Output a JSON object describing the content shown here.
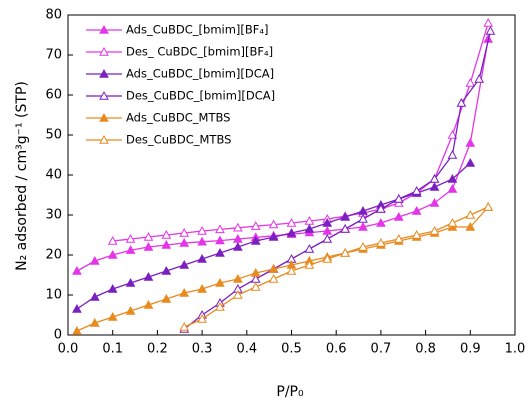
{
  "chart_data": {
    "type": "line",
    "xlabel": "P/P₀",
    "ylabel": "N₂ adsorbed / cm³g⁻¹ (STP)",
    "xlim": [
      0,
      1
    ],
    "ylim": [
      0,
      80
    ],
    "xticks": [
      {
        "value": 0,
        "label": "0.0"
      },
      0.1,
      0.2,
      0.3,
      0.4,
      0.5,
      0.6,
      0.7,
      0.8,
      0.9,
      {
        "value": 1,
        "label": "1.0"
      }
    ],
    "yticks": [
      0,
      10,
      20,
      30,
      40,
      50,
      60,
      70,
      80
    ],
    "legend": "upper left",
    "series": [
      {
        "name": "Ads_CuBDC_[bmim][BF₄]",
        "color": "#e535e8",
        "marker": "filled",
        "x": [
          0.02,
          0.06,
          0.1,
          0.14,
          0.18,
          0.22,
          0.26,
          0.3,
          0.34,
          0.38,
          0.42,
          0.46,
          0.5,
          0.54,
          0.58,
          0.62,
          0.66,
          0.7,
          0.74,
          0.78,
          0.82,
          0.86,
          0.9,
          0.94
        ],
        "values": [
          16,
          18.5,
          20,
          21.2,
          22,
          22.5,
          23,
          23.3,
          23.6,
          24,
          24.4,
          24.8,
          25.2,
          25.6,
          26,
          26.5,
          27,
          28,
          29.5,
          31,
          33,
          36.5,
          48,
          74
        ]
      },
      {
        "name": "Des_ CuBDC_[bmim][BF₄]",
        "color": "#e535e8",
        "marker": "open",
        "x": [
          0.1,
          0.14,
          0.18,
          0.22,
          0.26,
          0.3,
          0.34,
          0.38,
          0.42,
          0.46,
          0.5,
          0.54,
          0.58,
          0.62,
          0.66,
          0.7,
          0.74,
          0.78,
          0.82,
          0.86,
          0.9,
          0.94
        ],
        "values": [
          23.5,
          24,
          24.5,
          25,
          25.5,
          26,
          26.4,
          26.8,
          27.2,
          27.6,
          28,
          28.5,
          29,
          29.7,
          30.5,
          31.5,
          33,
          35.5,
          39,
          50,
          63,
          78
        ]
      },
      {
        "name": "Ads_CuBDC_[bmim][DCA]",
        "color": "#7b1fc0",
        "marker": "filled",
        "x": [
          0.02,
          0.06,
          0.1,
          0.14,
          0.18,
          0.22,
          0.26,
          0.3,
          0.34,
          0.38,
          0.42,
          0.46,
          0.5,
          0.54,
          0.58,
          0.62,
          0.66,
          0.7,
          0.74,
          0.78,
          0.82,
          0.86,
          0.9
        ],
        "values": [
          6.5,
          9.5,
          11.5,
          13,
          14.5,
          16,
          17.5,
          19,
          20.5,
          22,
          23.5,
          24.5,
          25.5,
          26.5,
          28,
          29.5,
          31,
          32.5,
          34,
          35.5,
          37,
          39,
          43
        ]
      },
      {
        "name": "Des_CuBDC_[bmim][DCA]",
        "color": "#7b1fc0",
        "marker": "open",
        "x": [
          0.26,
          0.3,
          0.34,
          0.38,
          0.42,
          0.46,
          0.5,
          0.54,
          0.58,
          0.62,
          0.66,
          0.7,
          0.74,
          0.78,
          0.82,
          0.86,
          0.88,
          0.92,
          0.945
        ],
        "values": [
          1.5,
          5,
          8,
          11.5,
          14,
          16.5,
          19,
          21.5,
          24,
          26.5,
          29,
          31.5,
          34,
          36,
          39,
          45,
          58,
          64,
          76
        ]
      },
      {
        "name": "Ads_CuBDC_MTBS",
        "color": "#e88a1e",
        "marker": "filled",
        "x": [
          0.02,
          0.06,
          0.1,
          0.14,
          0.18,
          0.22,
          0.26,
          0.3,
          0.34,
          0.38,
          0.42,
          0.46,
          0.5,
          0.54,
          0.58,
          0.62,
          0.66,
          0.7,
          0.74,
          0.78,
          0.82,
          0.86,
          0.9,
          0.94
        ],
        "values": [
          1,
          3,
          4.5,
          6,
          7.5,
          9,
          10.5,
          11.5,
          13,
          14,
          15.5,
          16.5,
          17.5,
          18.5,
          19.5,
          20.5,
          21.5,
          22.5,
          23.5,
          24.5,
          25.5,
          27,
          27,
          32
        ]
      },
      {
        "name": "Des_CuBDC_MTBS",
        "color": "#e88a1e",
        "marker": "open",
        "x": [
          0.26,
          0.3,
          0.34,
          0.38,
          0.42,
          0.46,
          0.5,
          0.54,
          0.58,
          0.62,
          0.66,
          0.7,
          0.74,
          0.78,
          0.82,
          0.86,
          0.9,
          0.94
        ],
        "values": [
          2,
          4,
          7,
          10,
          12,
          14,
          16,
          17.5,
          19,
          20.5,
          22,
          23,
          24,
          25,
          26,
          28,
          30,
          32
        ]
      }
    ]
  }
}
